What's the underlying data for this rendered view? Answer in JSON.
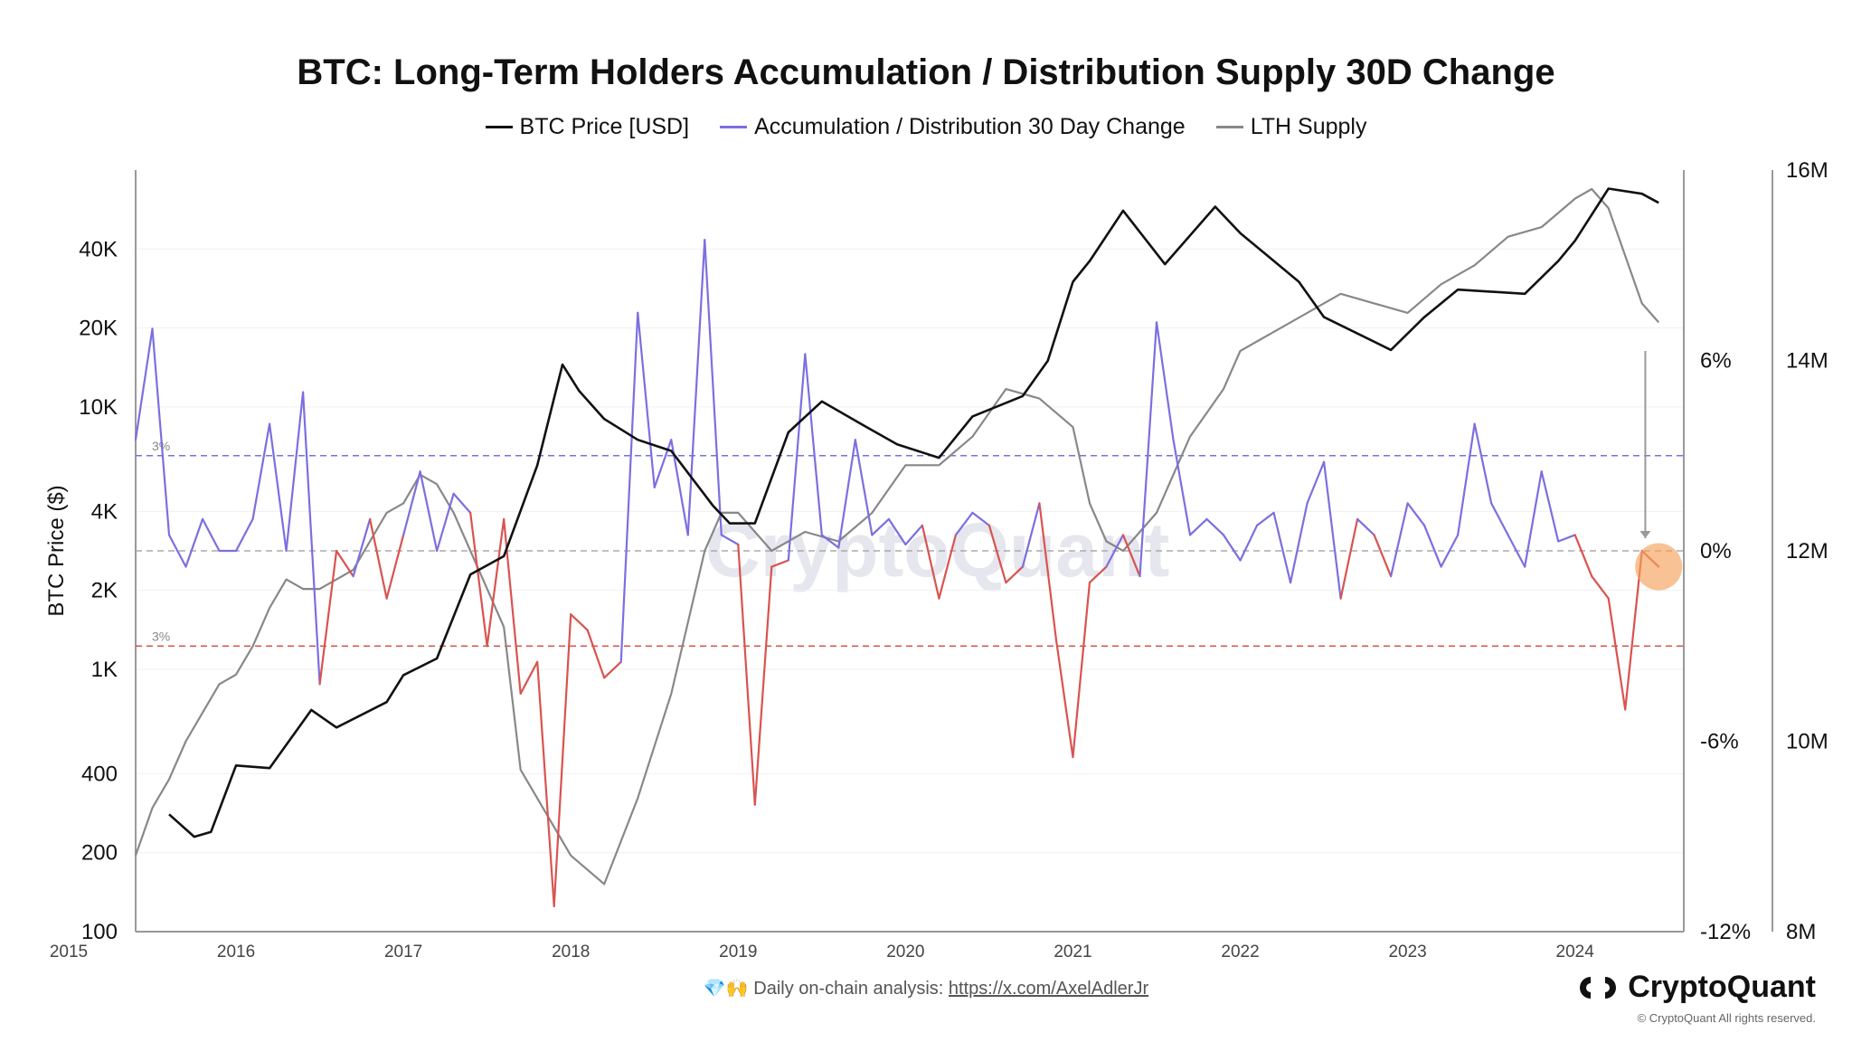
{
  "colors": {
    "price": "#111111",
    "accum_pos": "#7b6fe0",
    "accum_neg": "#d9534f",
    "lth": "#888888",
    "highlight": "#f5a15a"
  },
  "footer": {
    "emoji": "💎🙌",
    "text": "Daily on-chain analysis:",
    "link": "https://x.com/AxelAdlerJr"
  },
  "brand": {
    "name": "CryptoQuant",
    "copyright": "© CryptoQuant All rights reserved.",
    "watermark": "CryptoQuant"
  },
  "chart_data": {
    "type": "line",
    "title": "BTC: Long-Term Holders Accumulation / Distribution Supply 30D Change",
    "legend_placement": "top-center",
    "grid": true,
    "x_ticks": [
      "2015",
      "2016",
      "2017",
      "2018",
      "2019",
      "2020",
      "2021",
      "2022",
      "2023",
      "2024"
    ],
    "x_range": [
      2015.4,
      2024.65
    ],
    "left_axis": {
      "label": "BTC Price ($)",
      "scale": "log",
      "ticks": [
        "100",
        "200",
        "400",
        "1K",
        "2K",
        "4K",
        "10K",
        "20K",
        "40K"
      ],
      "tick_values": [
        100,
        200,
        400,
        1000,
        2000,
        4000,
        10000,
        20000,
        40000
      ],
      "range": [
        100,
        80000
      ]
    },
    "mid_axis": {
      "label": "",
      "ticks": [
        "-12%",
        "-6%",
        "0%",
        "6%"
      ],
      "tick_values": [
        -12,
        -6,
        0,
        6
      ],
      "range": [
        -12,
        12
      ]
    },
    "right_axis": {
      "label": "",
      "ticks": [
        "8M",
        "10M",
        "12M",
        "14M",
        "16M"
      ],
      "tick_values": [
        8,
        10,
        12,
        14,
        16
      ],
      "range": [
        8,
        16
      ]
    },
    "reference_lines": [
      {
        "value": 3,
        "label": "3%",
        "color": "#7b6fe0"
      },
      {
        "value": 0,
        "label": "",
        "color": "#aaaaaa"
      },
      {
        "value": -3,
        "label": "3%",
        "color": "#d9534f"
      }
    ],
    "series": [
      {
        "name": "BTC Price [USD]",
        "axis": "left",
        "x": [
          2015.6,
          2015.75,
          2015.85,
          2016.0,
          2016.2,
          2016.45,
          2016.6,
          2016.9,
          2017.0,
          2017.2,
          2017.4,
          2017.6,
          2017.8,
          2017.95,
          2018.05,
          2018.2,
          2018.4,
          2018.6,
          2018.85,
          2018.95,
          2019.1,
          2019.3,
          2019.5,
          2019.75,
          2019.95,
          2020.2,
          2020.4,
          2020.7,
          2020.85,
          2021.0,
          2021.1,
          2021.3,
          2021.55,
          2021.85,
          2022.0,
          2022.35,
          2022.5,
          2022.9,
          2023.1,
          2023.3,
          2023.7,
          2023.9,
          2024.0,
          2024.2,
          2024.4,
          2024.5
        ],
        "values": [
          280,
          230,
          240,
          430,
          420,
          700,
          600,
          750,
          950,
          1100,
          2300,
          2700,
          6000,
          14500,
          11500,
          9000,
          7500,
          6800,
          4200,
          3600,
          3600,
          8000,
          10500,
          8500,
          7200,
          6400,
          9200,
          11000,
          15000,
          30000,
          36000,
          56000,
          35000,
          58000,
          46000,
          30000,
          22000,
          16500,
          22000,
          28000,
          27000,
          36000,
          43000,
          68000,
          65000,
          60000
        ]
      },
      {
        "name": "Accumulation / Distribution 30 Day Change",
        "axis": "mid",
        "x": [
          2015.4,
          2015.5,
          2015.6,
          2015.7,
          2015.8,
          2015.9,
          2016.0,
          2016.1,
          2016.2,
          2016.3,
          2016.4,
          2016.5,
          2016.6,
          2016.7,
          2016.8,
          2016.9,
          2017.0,
          2017.1,
          2017.2,
          2017.3,
          2017.4,
          2017.5,
          2017.6,
          2017.7,
          2017.8,
          2017.9,
          2018.0,
          2018.1,
          2018.2,
          2018.3,
          2018.4,
          2018.5,
          2018.6,
          2018.7,
          2018.8,
          2018.9,
          2019.0,
          2019.1,
          2019.2,
          2019.3,
          2019.4,
          2019.5,
          2019.6,
          2019.7,
          2019.8,
          2019.9,
          2020.0,
          2020.1,
          2020.2,
          2020.3,
          2020.4,
          2020.5,
          2020.6,
          2020.7,
          2020.8,
          2020.9,
          2021.0,
          2021.1,
          2021.2,
          2021.3,
          2021.4,
          2021.5,
          2021.6,
          2021.7,
          2021.8,
          2021.9,
          2022.0,
          2022.1,
          2022.2,
          2022.3,
          2022.4,
          2022.5,
          2022.6,
          2022.7,
          2022.8,
          2022.9,
          2023.0,
          2023.1,
          2023.2,
          2023.3,
          2023.4,
          2023.5,
          2023.6,
          2023.7,
          2023.8,
          2023.9,
          2024.0,
          2024.1,
          2024.2,
          2024.3,
          2024.4,
          2024.5
        ],
        "values": [
          3.5,
          7.0,
          0.5,
          -0.5,
          1.0,
          0.0,
          0.0,
          1.0,
          4.0,
          0.0,
          5.0,
          -4.2,
          0.0,
          -0.8,
          1.0,
          -1.5,
          0.5,
          2.5,
          0.0,
          1.8,
          1.2,
          -3.0,
          1.0,
          -4.5,
          -3.5,
          -11.2,
          -2.0,
          -2.5,
          -4.0,
          -3.5,
          7.5,
          2.0,
          3.5,
          0.5,
          9.8,
          0.5,
          0.2,
          -8.0,
          -0.5,
          -0.3,
          6.2,
          0.5,
          0.1,
          3.5,
          0.5,
          1.0,
          0.2,
          0.8,
          -1.5,
          0.5,
          1.2,
          0.8,
          -1.0,
          -0.5,
          1.5,
          -2.8,
          -6.5,
          -1.0,
          -0.5,
          0.5,
          -0.8,
          7.2,
          3.5,
          0.5,
          1.0,
          0.5,
          -0.3,
          0.8,
          1.2,
          -1.0,
          1.5,
          2.8,
          -1.5,
          1.0,
          0.5,
          -0.8,
          1.5,
          0.8,
          -0.5,
          0.5,
          4.0,
          1.5,
          0.5,
          -0.5,
          2.5,
          0.3,
          0.5,
          -0.8,
          -1.5,
          -5.0,
          0.0,
          -0.5
        ]
      },
      {
        "name": "LTH Supply",
        "axis": "right",
        "x": [
          2015.4,
          2015.5,
          2015.6,
          2015.7,
          2015.8,
          2015.9,
          2016.0,
          2016.1,
          2016.2,
          2016.3,
          2016.4,
          2016.5,
          2016.6,
          2016.7,
          2016.8,
          2016.9,
          2017.0,
          2017.1,
          2017.2,
          2017.3,
          2017.4,
          2017.5,
          2017.6,
          2017.7,
          2017.8,
          2017.9,
          2018.0,
          2018.2,
          2018.4,
          2018.6,
          2018.8,
          2018.9,
          2019.0,
          2019.2,
          2019.4,
          2019.6,
          2019.8,
          2020.0,
          2020.2,
          2020.4,
          2020.6,
          2020.8,
          2021.0,
          2021.1,
          2021.2,
          2021.3,
          2021.4,
          2021.5,
          2021.7,
          2021.9,
          2022.0,
          2022.2,
          2022.4,
          2022.6,
          2022.8,
          2023.0,
          2023.2,
          2023.4,
          2023.6,
          2023.8,
          2024.0,
          2024.1,
          2024.2,
          2024.4,
          2024.5
        ],
        "values": [
          8.8,
          9.3,
          9.6,
          10.0,
          10.3,
          10.6,
          10.7,
          11.0,
          11.4,
          11.7,
          11.6,
          11.6,
          11.7,
          11.8,
          12.1,
          12.4,
          12.5,
          12.8,
          12.7,
          12.4,
          12.0,
          11.6,
          11.2,
          9.7,
          9.4,
          9.1,
          8.8,
          8.5,
          9.4,
          10.5,
          12.0,
          12.4,
          12.4,
          12.0,
          12.2,
          12.1,
          12.4,
          12.9,
          12.9,
          13.2,
          13.7,
          13.6,
          13.3,
          12.5,
          12.1,
          12.0,
          12.2,
          12.4,
          13.2,
          13.7,
          14.1,
          14.3,
          14.5,
          14.7,
          14.6,
          14.5,
          14.8,
          15.0,
          15.3,
          15.4,
          15.7,
          15.8,
          15.6,
          14.6,
          14.4
        ]
      }
    ]
  }
}
